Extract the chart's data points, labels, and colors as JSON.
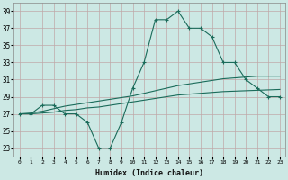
{
  "xlabel": "Humidex (Indice chaleur)",
  "x": [
    0,
    1,
    2,
    3,
    4,
    5,
    6,
    7,
    8,
    9,
    10,
    11,
    12,
    13,
    14,
    15,
    16,
    17,
    18,
    19,
    20,
    21,
    22,
    23
  ],
  "y_main": [
    27,
    27,
    28,
    28,
    27,
    27,
    26,
    23,
    23,
    26,
    30,
    33,
    38,
    38,
    39,
    37,
    37,
    36,
    33,
    33,
    31,
    30,
    29,
    29
  ],
  "y_line1": [
    27.0,
    27.1,
    27.3,
    27.6,
    27.9,
    28.1,
    28.3,
    28.5,
    28.7,
    28.9,
    29.1,
    29.4,
    29.7,
    30.0,
    30.3,
    30.5,
    30.7,
    30.9,
    31.1,
    31.2,
    31.3,
    31.4,
    31.4,
    31.4
  ],
  "y_line2": [
    27.0,
    27.0,
    27.1,
    27.2,
    27.4,
    27.5,
    27.7,
    27.8,
    28.0,
    28.2,
    28.4,
    28.6,
    28.8,
    29.0,
    29.2,
    29.3,
    29.4,
    29.5,
    29.6,
    29.65,
    29.7,
    29.75,
    29.8,
    29.85
  ],
  "line_color": "#1a6b5a",
  "bg_color": "#cce8e4",
  "grid_color": "#c0a8a8",
  "ylim": [
    22,
    40
  ],
  "yticks": [
    23,
    25,
    27,
    29,
    31,
    33,
    35,
    37,
    39
  ],
  "xlim": [
    -0.5,
    23.5
  ]
}
